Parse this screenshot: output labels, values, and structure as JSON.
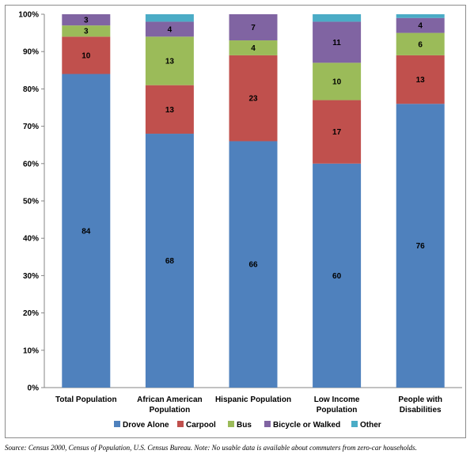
{
  "chart_data": {
    "type": "bar",
    "stacked": true,
    "categories": [
      [
        "Total Population"
      ],
      [
        "African American",
        "Population"
      ],
      [
        "Hispanic Population"
      ],
      [
        "Low Income",
        "Population"
      ],
      [
        "People with",
        "Disabilities"
      ]
    ],
    "series": [
      {
        "name": "Drove Alone",
        "color": "#4f81bd",
        "values": [
          84,
          68,
          66,
          60,
          76
        ]
      },
      {
        "name": "Carpool",
        "color": "#c0504d",
        "values": [
          10,
          13,
          23,
          17,
          13
        ]
      },
      {
        "name": "Bus",
        "color": "#9bbb59",
        "values": [
          3,
          13,
          4,
          10,
          6
        ]
      },
      {
        "name": "Bicycle or Walked",
        "color": "#8064a2",
        "values": [
          3,
          4,
          7,
          11,
          4
        ]
      },
      {
        "name": "Other",
        "color": "#4bacc6",
        "values": [
          0,
          2,
          0,
          2,
          1
        ]
      }
    ],
    "data_labels": [
      [
        "84",
        "10",
        "3",
        "3",
        ""
      ],
      [
        "68",
        "13",
        "13",
        "4",
        ""
      ],
      [
        "66",
        "23",
        "4",
        "7",
        ""
      ],
      [
        "60",
        "17",
        "10",
        "11",
        ""
      ],
      [
        "76",
        "13",
        "6",
        "4",
        ""
      ]
    ],
    "y_ticks": [
      "0%",
      "10%",
      "20%",
      "30%",
      "40%",
      "50%",
      "60%",
      "70%",
      "80%",
      "90%",
      "100%"
    ],
    "ylim": [
      0,
      100
    ],
    "grid": false,
    "legend_position": "bottom"
  },
  "source_note": "Source:  Census 2000, Census of Population, U.S. Census Bureau.  Note:  No usable data is available about commuters from zero-car households."
}
